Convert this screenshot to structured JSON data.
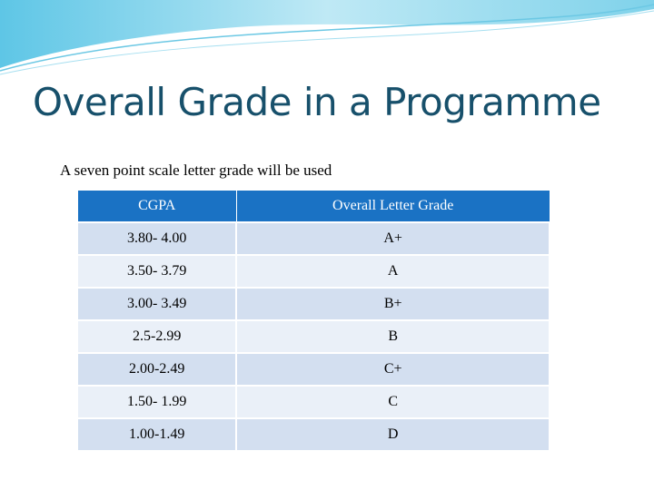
{
  "title": "Overall Grade in a Programme",
  "subtitle": "A seven point scale letter grade will be used",
  "table": {
    "header": [
      "CGPA",
      "Overall Letter Grade"
    ],
    "rows": [
      [
        "3.80- 4.00",
        "A+"
      ],
      [
        "3.50- 3.79",
        "A"
      ],
      [
        "3.00- 3.49",
        "B+"
      ],
      [
        "2.5-2.99",
        "B"
      ],
      [
        "2.00-2.49",
        "C+"
      ],
      [
        "1.50- 1.99",
        "C"
      ],
      [
        "1.00-1.49",
        "D"
      ]
    ]
  }
}
